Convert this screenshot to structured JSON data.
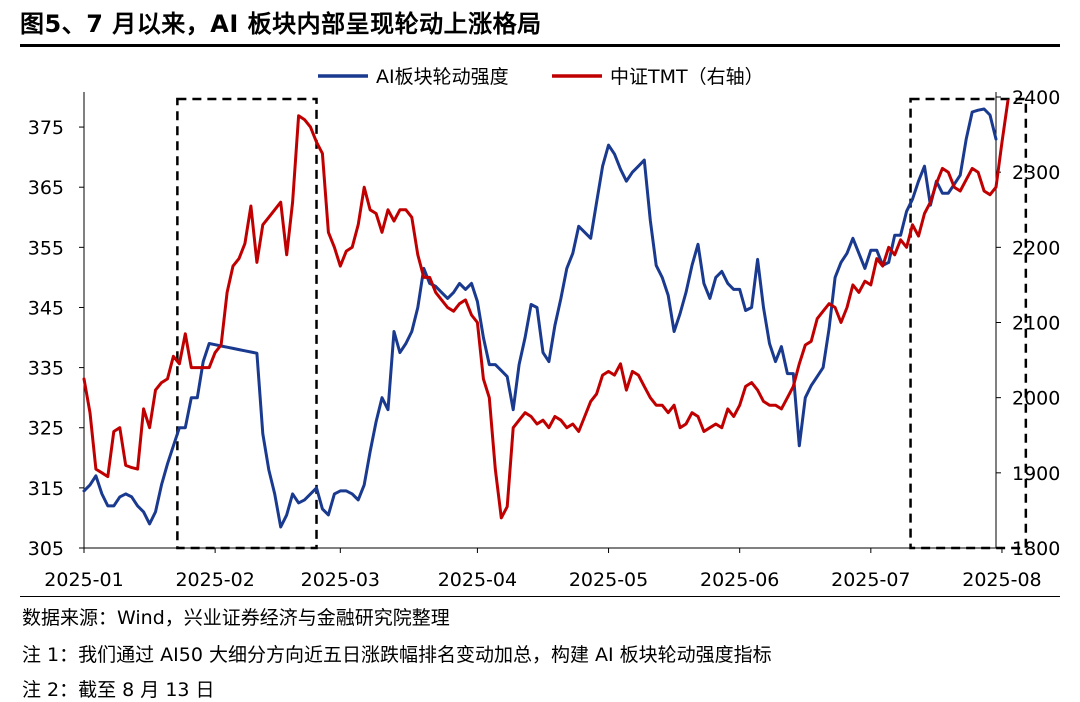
{
  "title": "图5、7 月以来，AI 板块内部呈现轮动上涨格局",
  "notes": [
    "数据来源：Wind，兴业证券经济与金融研究院整理",
    "注 1：我们通过 AI50 大细分方向近五日涨跌幅排名变动加总，构建 AI 板块轮动强度指标",
    "注 2：截至 8 月 13 日"
  ],
  "chart_data": {
    "type": "line",
    "title": "",
    "x_labels": [
      "2025-01",
      "2025-02",
      "2025-03",
      "2025-04",
      "2025-05",
      "2025-06",
      "2025-07",
      "2025-08"
    ],
    "x_label_day_index": [
      0,
      22,
      43,
      66,
      88,
      110,
      132,
      154
    ],
    "y_left": {
      "ticks": [
        305,
        315,
        325,
        335,
        345,
        355,
        365,
        375
      ],
      "range": [
        305,
        380
      ]
    },
    "y_right": {
      "ticks": [
        1800,
        1900,
        2000,
        2100,
        2200,
        2300,
        2400
      ],
      "range": [
        1800,
        2400
      ]
    },
    "legend_position": "top-center",
    "series": [
      {
        "name": "AI板块轮动强度",
        "axis": "left",
        "color": "#1a3a8f",
        "values": [
          314.5,
          315.5,
          317.0,
          314.0,
          312.0,
          312.0,
          313.5,
          314.0,
          313.5,
          312.0,
          311.0,
          309.0,
          311.0,
          315.5,
          319.0,
          322.0,
          325.0,
          325.0,
          330.0,
          330.0,
          336.0,
          339.0,
          338.8,
          338.6,
          338.4,
          338.2,
          338.0,
          337.8,
          337.6,
          337.4,
          324.0,
          318.0,
          314.0,
          308.5,
          310.5,
          314.0,
          312.5,
          313.0,
          314.0,
          315.0,
          311.5,
          310.5,
          314.0,
          314.5,
          314.5,
          314.0,
          313.0,
          315.5,
          321.0,
          326.0,
          330.0,
          328.0,
          341.0,
          337.5,
          339.0,
          341.0,
          345.0,
          351.5,
          349.0,
          348.5,
          347.5,
          346.5,
          347.5,
          349.0,
          348.0,
          349.0,
          346.0,
          340.0,
          335.5,
          335.5,
          334.5,
          333.5,
          328.0,
          335.5,
          340.0,
          345.5,
          345.0,
          337.5,
          336.0,
          342.0,
          346.5,
          351.5,
          354.0,
          358.5,
          357.5,
          356.5,
          362.5,
          368.5,
          372.0,
          370.5,
          368.0,
          366.0,
          367.5,
          368.5,
          369.5,
          359.5,
          352.0,
          350.0,
          347.0,
          341.0,
          344.0,
          347.5,
          352.0,
          355.5,
          349.0,
          346.5,
          350.0,
          351.0,
          349.0,
          348.0,
          348.0,
          344.5,
          345.0,
          353.0,
          345.0,
          339.0,
          336.0,
          338.5,
          334.0,
          334.0,
          322.0,
          330.0,
          332.0,
          333.5,
          335.0,
          341.5,
          350.0,
          352.5,
          354.0,
          356.5,
          354.0,
          351.5,
          354.5,
          354.5,
          352.0,
          352.5,
          357.0,
          357.0,
          361.0,
          363.0,
          366.0,
          368.5,
          362.0,
          366.0,
          364.0,
          364.0,
          365.5,
          367.0,
          373.0,
          377.5,
          377.8,
          378.0,
          377.0,
          373.0
        ]
      },
      {
        "name": "中证TMT（右轴）",
        "axis": "right",
        "color": "#c00000",
        "values": [
          2025,
          1980,
          1905,
          1900,
          1895,
          1955,
          1960,
          1910,
          1907,
          1905,
          1985,
          1960,
          2010,
          2020,
          2025,
          2055,
          2045,
          2085,
          2040,
          2040,
          2040,
          2040,
          2060,
          2070,
          2140,
          2175,
          2185,
          2205,
          2255,
          2180,
          2230,
          2240,
          2250,
          2260,
          2190,
          2260,
          2375,
          2370,
          2360,
          2340,
          2325,
          2220,
          2200,
          2175,
          2195,
          2200,
          2230,
          2280,
          2250,
          2245,
          2220,
          2250,
          2235,
          2250,
          2250,
          2240,
          2190,
          2160,
          2160,
          2140,
          2130,
          2120,
          2115,
          2125,
          2130,
          2110,
          2100,
          2025,
          2000,
          1905,
          1840,
          1855,
          1960,
          1970,
          1980,
          1975,
          1965,
          1970,
          1960,
          1975,
          1970,
          1960,
          1965,
          1955,
          1975,
          1995,
          2005,
          2030,
          2035,
          2030,
          2045,
          2010,
          2035,
          2030,
          2015,
          2000,
          1990,
          1990,
          1980,
          1990,
          1960,
          1965,
          1980,
          1975,
          1955,
          1960,
          1965,
          1960,
          1985,
          1975,
          1990,
          2015,
          2020,
          2010,
          1995,
          1990,
          1990,
          1985,
          2000,
          2015,
          2045,
          2070,
          2075,
          2105,
          2115,
          2125,
          2120,
          2100,
          2120,
          2150,
          2140,
          2155,
          2150,
          2185,
          2175,
          2200,
          2190,
          2210,
          2200,
          2230,
          2215,
          2245,
          2260,
          2285,
          2305,
          2300,
          2280,
          2275,
          2290,
          2305,
          2300,
          2275,
          2270,
          2280,
          2340,
          2395
        ]
      }
    ],
    "highlight_boxes": [
      {
        "start_day_index": 16,
        "end_day_index": 38
      },
      {
        "start_day_index": 139,
        "end_day_index": 157
      }
    ]
  }
}
